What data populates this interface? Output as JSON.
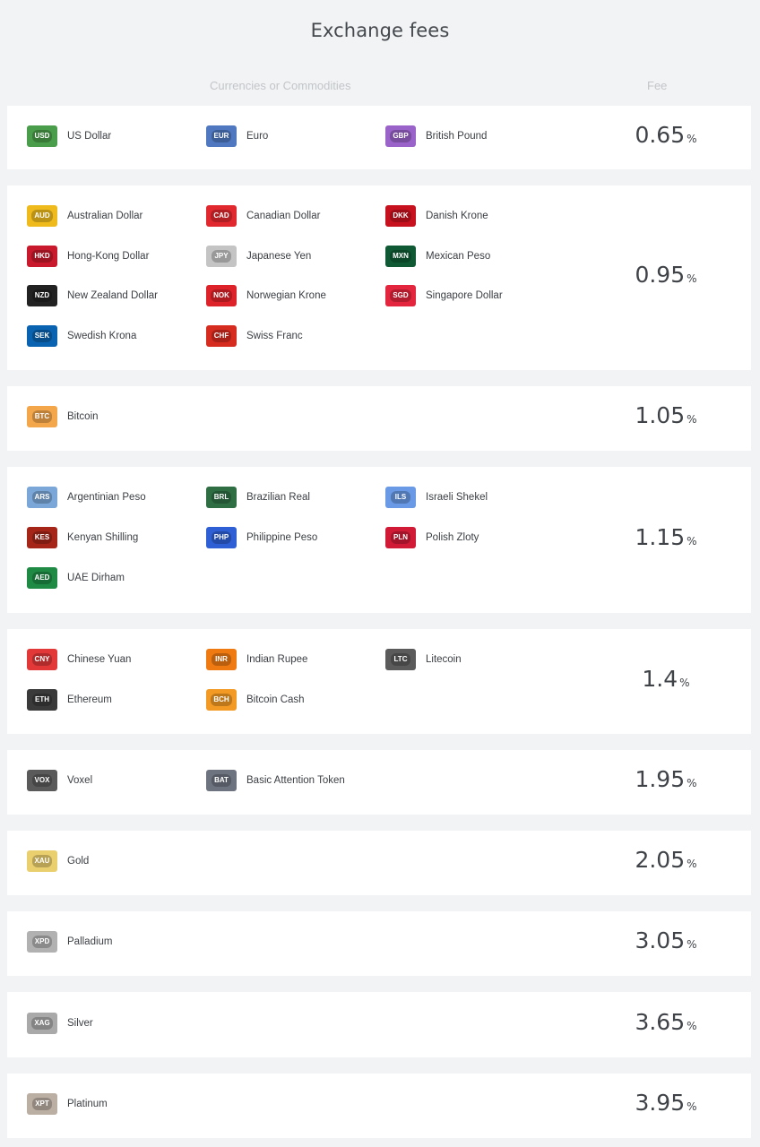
{
  "page": {
    "title": "Exchange fees"
  },
  "headers": {
    "currencies": "Currencies or Commodities",
    "fee": "Fee"
  },
  "percent_sign": "%",
  "groups": [
    {
      "fee": "0.65",
      "items": [
        {
          "code": "USD",
          "name": "US Dollar",
          "color": "#4a9d4a"
        },
        {
          "code": "EUR",
          "name": "Euro",
          "color": "#4f78c0"
        },
        {
          "code": "GBP",
          "name": "British Pound",
          "color": "#9a63c9"
        }
      ]
    },
    {
      "fee": "0.95",
      "items": [
        {
          "code": "AUD",
          "name": "Australian Dollar",
          "color": "#efbb1c"
        },
        {
          "code": "CAD",
          "name": "Canadian Dollar",
          "color": "#e0282e"
        },
        {
          "code": "DKK",
          "name": "Danish Krone",
          "color": "#c8111e"
        },
        {
          "code": "HKD",
          "name": "Hong-Kong Dollar",
          "color": "#c81a2c"
        },
        {
          "code": "JPY",
          "name": "Japanese Yen",
          "color": "#c4c4c4"
        },
        {
          "code": "MXN",
          "name": "Mexican Peso",
          "color": "#0f5a35"
        },
        {
          "code": "NZD",
          "name": "New Zealand Dollar",
          "color": "#222222"
        },
        {
          "code": "NOK",
          "name": "Norwegian Krone",
          "color": "#de2229"
        },
        {
          "code": "SGD",
          "name": "Singapore Dollar",
          "color": "#e3263d"
        },
        {
          "code": "SEK",
          "name": "Swedish Krona",
          "color": "#0a63b0"
        },
        {
          "code": "CHF",
          "name": "Swiss Franc",
          "color": "#d62b1f"
        }
      ]
    },
    {
      "fee": "1.05",
      "items": [
        {
          "code": "BTC",
          "name": "Bitcoin",
          "color": "#f3a64a"
        }
      ]
    },
    {
      "fee": "1.15",
      "items": [
        {
          "code": "ARS",
          "name": "Argentinian Peso",
          "color": "#7aa7d8"
        },
        {
          "code": "BRL",
          "name": "Brazilian Real",
          "color": "#2f6d43"
        },
        {
          "code": "ILS",
          "name": "Israeli Shekel",
          "color": "#6a9ae6"
        },
        {
          "code": "KES",
          "name": "Kenyan Shilling",
          "color": "#a52619"
        },
        {
          "code": "PHP",
          "name": "Philippine Peso",
          "color": "#2e5fd5"
        },
        {
          "code": "PLN",
          "name": "Polish Zloty",
          "color": "#d11a36"
        },
        {
          "code": "AED",
          "name": "UAE Dirham",
          "color": "#1e8a43"
        }
      ]
    },
    {
      "fee": "1.4",
      "items": [
        {
          "code": "CNY",
          "name": "Chinese Yuan",
          "color": "#e23838"
        },
        {
          "code": "INR",
          "name": "Indian Rupee",
          "color": "#ef7a12"
        },
        {
          "code": "LTC",
          "name": "Litecoin",
          "color": "#5b5b5b"
        },
        {
          "code": "ETH",
          "name": "Ethereum",
          "color": "#3a3a3a"
        },
        {
          "code": "BCH",
          "name": "Bitcoin Cash",
          "color": "#f39a24"
        }
      ]
    },
    {
      "fee": "1.95",
      "items": [
        {
          "code": "VOX",
          "name": "Voxel",
          "color": "#5a5a5a"
        },
        {
          "code": "BAT",
          "name": "Basic Attention Token",
          "color": "#6d7480"
        }
      ]
    },
    {
      "fee": "2.05",
      "items": [
        {
          "code": "XAU",
          "name": "Gold",
          "color": "#e9cf6e"
        }
      ]
    },
    {
      "fee": "3.05",
      "items": [
        {
          "code": "XPD",
          "name": "Palladium",
          "color": "#b1b1b1"
        }
      ]
    },
    {
      "fee": "3.65",
      "items": [
        {
          "code": "XAG",
          "name": "Silver",
          "color": "#a9a9a9"
        }
      ]
    },
    {
      "fee": "3.95",
      "items": [
        {
          "code": "XPT",
          "name": "Platinum",
          "color": "#bbaea3"
        }
      ]
    }
  ]
}
